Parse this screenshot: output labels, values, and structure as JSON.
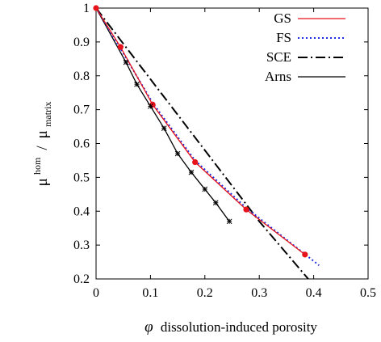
{
  "chart_data": {
    "type": "line",
    "xlabel_symbol": "φ",
    "xlabel_text": "dissolution-induced porosity",
    "ylabel": {
      "num_base": "μ",
      "num_sup": "hom",
      "slash": " / ",
      "den_base": "μ",
      "den_sub": "matrix"
    },
    "xlim": [
      0,
      0.5
    ],
    "ylim": [
      0.2,
      1.0
    ],
    "xticks": [
      "0",
      "0.1",
      "0.2",
      "0.3",
      "0.4",
      "0.5"
    ],
    "yticks": [
      "0.2",
      "0.3",
      "0.4",
      "0.5",
      "0.6",
      "0.7",
      "0.8",
      "0.9",
      "1"
    ],
    "grid": false,
    "legend_position": "top-right",
    "series": [
      {
        "name": "GS",
        "color": "#e8121b",
        "style": "solid",
        "x": [
          0,
          0.045,
          0.104,
          0.182,
          0.276,
          0.384
        ],
        "y": [
          1.0,
          0.885,
          0.715,
          0.545,
          0.405,
          0.272
        ],
        "markers": "filled-circle",
        "marker_x": [
          0,
          0.045,
          0.104,
          0.182,
          0.276,
          0.384
        ],
        "marker_y": [
          1.0,
          0.885,
          0.715,
          0.545,
          0.405,
          0.272
        ]
      },
      {
        "name": "FS",
        "color": "#1f2de0",
        "style": "dotted",
        "x": [
          0,
          0.045,
          0.104,
          0.182,
          0.276,
          0.41
        ],
        "y": [
          1.0,
          0.88,
          0.72,
          0.55,
          0.41,
          0.24
        ]
      },
      {
        "name": "SCE",
        "color": "#000000",
        "style": "dashdot",
        "x": [
          0,
          0.3,
          0.39
        ],
        "y": [
          1.0,
          0.37,
          0.2
        ]
      },
      {
        "name": "Arns",
        "color": "#000000",
        "style": "solid",
        "x": [
          0,
          0.055,
          0.075,
          0.1,
          0.125,
          0.15,
          0.175,
          0.2,
          0.22,
          0.245
        ],
        "y": [
          1.0,
          0.84,
          0.775,
          0.71,
          0.645,
          0.57,
          0.515,
          0.465,
          0.425,
          0.37
        ],
        "markers": "star",
        "marker_x": [
          0.055,
          0.075,
          0.1,
          0.125,
          0.15,
          0.175,
          0.2,
          0.22,
          0.245
        ],
        "marker_y": [
          0.84,
          0.775,
          0.71,
          0.645,
          0.57,
          0.515,
          0.465,
          0.425,
          0.37
        ]
      }
    ]
  }
}
